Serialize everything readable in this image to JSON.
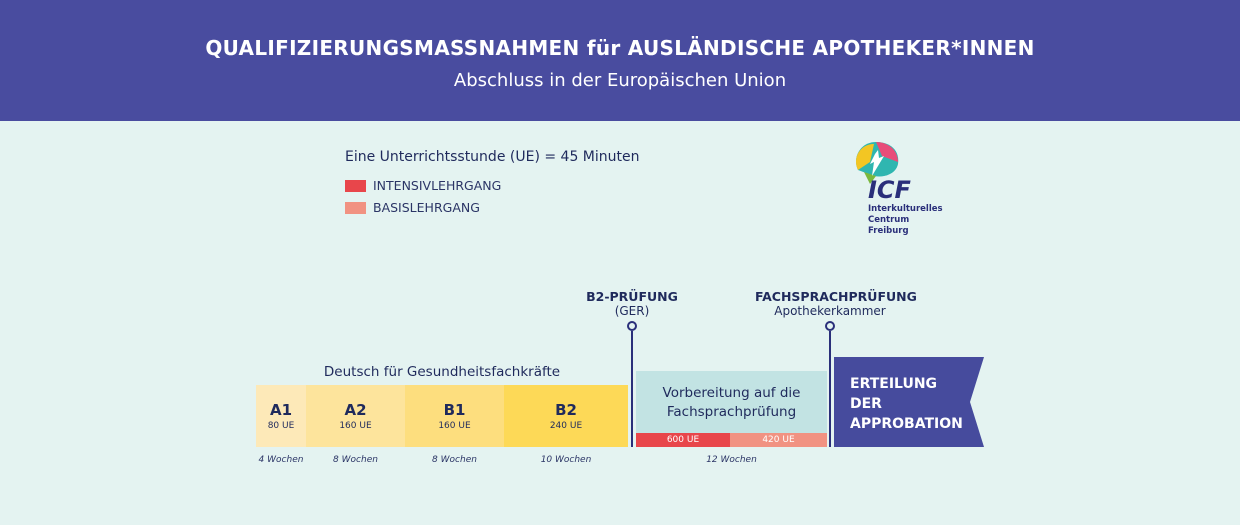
{
  "header": {
    "title": "QUALIFIZIERUNGSMASSNAHMEN für AUSLÄNDISCHE APOTHEKER*INNEN",
    "subtitle": "Abschluss in der Europäischen Union"
  },
  "legend": {
    "title": "Eine Unterrichtsstunde (UE) = 45 Minuten",
    "items": [
      {
        "label": "INTENSIVLEHRGANG",
        "color": "#e8464b"
      },
      {
        "label": "BASISLEHRGANG",
        "color": "#f19282"
      }
    ]
  },
  "logo": {
    "abbr": "ICF",
    "lines": [
      "Interkulturelles",
      "Centrum",
      "Freiburg"
    ]
  },
  "milestones": [
    {
      "title": "B2-PRÜFUNG",
      "sub": "(GER)"
    },
    {
      "title": "FACHSPRACHPRÜFUNG",
      "sub": "Apothekerkammer"
    }
  ],
  "course_title": "Deutsch für Gesundheitsfachkräfte",
  "levels": [
    {
      "level": "A1",
      "ue": "80 UE",
      "weeks": "4 Wochen",
      "color": "#fde9b8"
    },
    {
      "level": "A2",
      "ue": "160 UE",
      "weeks": "8 Wochen",
      "color": "#fde49c"
    },
    {
      "level": "B1",
      "ue": "160 UE",
      "weeks": "8 Wochen",
      "color": "#fdde7e"
    },
    {
      "level": "B2",
      "ue": "240 UE",
      "weeks": "10 Wochen",
      "color": "#fdd957"
    }
  ],
  "preparation": {
    "line1": "Vorbereitung auf die",
    "line2": "Fachsprachprüfung",
    "intensive_ue": "600 UE",
    "basic_ue": "420 UE",
    "weeks": "12 Wochen",
    "bg_color": "#c2e3e3"
  },
  "approbation": {
    "lines": [
      "ERTEILUNG",
      "DER",
      "APPROBATION"
    ],
    "color": "#464b9d"
  }
}
